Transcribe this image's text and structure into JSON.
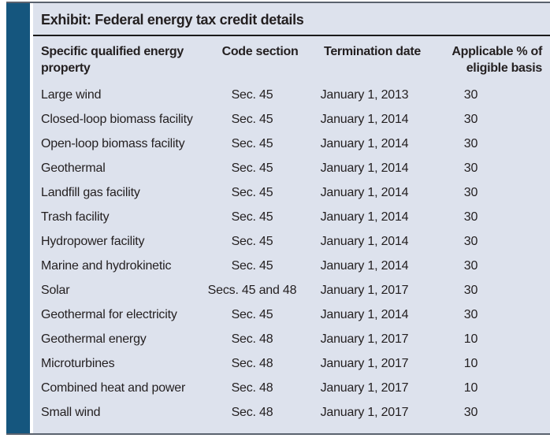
{
  "exhibit": {
    "title": "Exhibit: Federal energy tax credit details",
    "columns": [
      "Specific qualified energy property",
      "Code section",
      "Termination date",
      "Applicable % of eligible basis"
    ],
    "rows": [
      [
        "Large wind",
        "Sec. 45",
        "January 1, 2013",
        "30"
      ],
      [
        "Closed-loop biomass facility",
        "Sec. 45",
        "January 1, 2014",
        "30"
      ],
      [
        "Open-loop biomass facility",
        "Sec. 45",
        "January 1, 2014",
        "30"
      ],
      [
        "Geothermal",
        "Sec. 45",
        "January 1, 2014",
        "30"
      ],
      [
        "Landfill gas facility",
        "Sec. 45",
        "January 1, 2014",
        "30"
      ],
      [
        "Trash facility",
        "Sec. 45",
        "January 1, 2014",
        "30"
      ],
      [
        "Hydropower facility",
        "Sec. 45",
        "January 1, 2014",
        "30"
      ],
      [
        "Marine and hydrokinetic",
        "Sec. 45",
        "January 1, 2014",
        "30"
      ],
      [
        "Solar",
        "Secs. 45 and 48",
        "January 1, 2017",
        "30"
      ],
      [
        "Geothermal for electricity",
        "Sec. 45",
        "January 1, 2014",
        "30"
      ],
      [
        "Geothermal energy",
        "Sec. 48",
        "January 1, 2017",
        "10"
      ],
      [
        "Microturbines",
        "Sec. 48",
        "January 1, 2017",
        "10"
      ],
      [
        "Combined heat and power",
        "Sec. 48",
        "January 1, 2017",
        "10"
      ],
      [
        "Small wind",
        "Sec. 48",
        "January 1, 2017",
        "30"
      ]
    ],
    "colors": {
      "accent_bar": "#15567e",
      "panel_bg": "#dde2ed",
      "text": "#231f20",
      "title_rule": "#1b1b1b"
    }
  }
}
